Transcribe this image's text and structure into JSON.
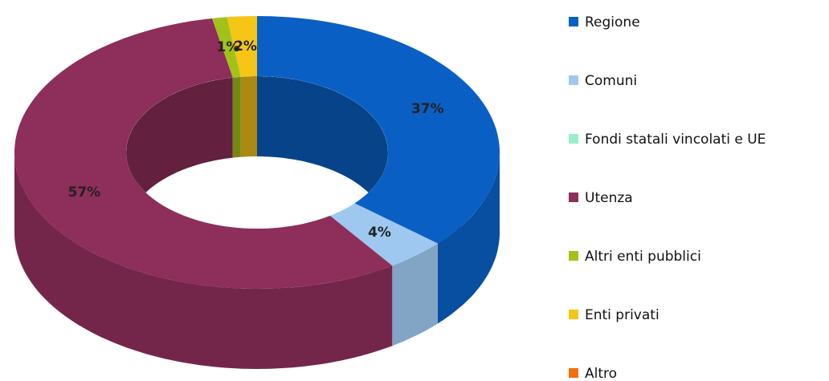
{
  "chart_data": {
    "type": "doughnut",
    "categories": [
      "Regione",
      "Comuni",
      "Fondi statali vincolati e UE",
      "Utenza",
      "Altri enti pubblici",
      "Enti privati",
      "Altro"
    ],
    "values": [
      37,
      4,
      0,
      57,
      1,
      2,
      0
    ],
    "value_labels": [
      "37%",
      "4%",
      null,
      "57%",
      "1%",
      "2%",
      null
    ],
    "colors": [
      "#0a5fc4",
      "#9ec8f0",
      "#99f0c8",
      "#8e2e5a",
      "#a3c219",
      "#f5c518",
      "#f07010"
    ],
    "legend": "right"
  }
}
